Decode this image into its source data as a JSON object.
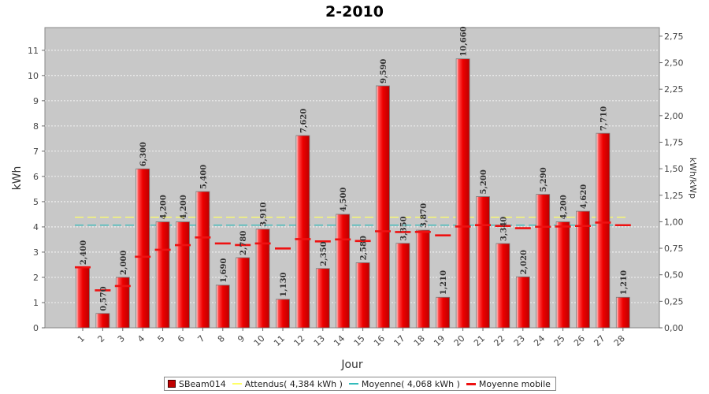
{
  "chart_data": {
    "type": "bar",
    "title": "2-2010",
    "xlabel": "Jour",
    "ylabel": "kWh",
    "y2label": "kWh/kWp",
    "categories": [
      "1",
      "2",
      "3",
      "4",
      "5",
      "6",
      "7",
      "8",
      "9",
      "10",
      "11",
      "12",
      "13",
      "14",
      "15",
      "16",
      "17",
      "18",
      "19",
      "20",
      "21",
      "22",
      "23",
      "24",
      "25",
      "26",
      "27",
      "28"
    ],
    "series": [
      {
        "name": "SBeam014",
        "values": [
          2.4,
          0.57,
          2.0,
          6.3,
          4.2,
          4.2,
          5.4,
          1.69,
          2.78,
          3.91,
          1.13,
          7.62,
          2.35,
          4.5,
          2.58,
          9.59,
          3.35,
          3.87,
          1.21,
          10.66,
          5.2,
          3.34,
          2.02,
          5.29,
          4.2,
          4.62,
          7.71,
          1.21
        ],
        "labels": [
          "2,400",
          "0,570",
          "2,000",
          "6,300",
          "4,200",
          "4,200",
          "5,400",
          "1,690",
          "2,780",
          "3,910",
          "1,130",
          "7,620",
          "2,350",
          "4,500",
          "2,580",
          "9,590",
          "3,350",
          "3,870",
          "1,210",
          "10,660",
          "5,200",
          "3,340",
          "2,020",
          "5,290",
          "4,200",
          "4,620",
          "7,710",
          "1,210"
        ],
        "color": "#dd0000"
      },
      {
        "name": "Attendus( 4,384 kWh )",
        "value": 4.384,
        "color": "#ffff66"
      },
      {
        "name": "Moyenne( 4,068 kWh )",
        "value": 4.068,
        "color": "#33bbbb"
      },
      {
        "name": "Moyenne mobile",
        "values": [
          2.4,
          1.485,
          1.657,
          2.818,
          3.094,
          3.278,
          3.581,
          3.345,
          3.282,
          3.345,
          3.144,
          3.517,
          3.427,
          3.503,
          3.441,
          3.826,
          3.798,
          3.802,
          3.665,
          4.015,
          4.071,
          4.038,
          3.95,
          4.006,
          4.014,
          4.037,
          4.173,
          4.068
        ],
        "color": "#ee1111"
      }
    ],
    "ylim": [
      0,
      11.9
    ],
    "yticks": [
      0,
      1,
      2,
      3,
      4,
      5,
      6,
      7,
      8,
      9,
      10,
      11
    ],
    "y2lim": [
      0,
      2.831
    ],
    "y2ticks": [
      0,
      0.25,
      0.5,
      0.75,
      1.0,
      1.25,
      1.5,
      1.75,
      2.0,
      2.25,
      2.5,
      2.75
    ],
    "y2tick_labels": [
      "0,00",
      "0,25",
      "0,50",
      "0,75",
      "1,00",
      "1,25",
      "1,50",
      "1,75",
      "2,00",
      "2,25",
      "2,50",
      "2,75"
    ],
    "grid": true,
    "legend": "bottom"
  }
}
